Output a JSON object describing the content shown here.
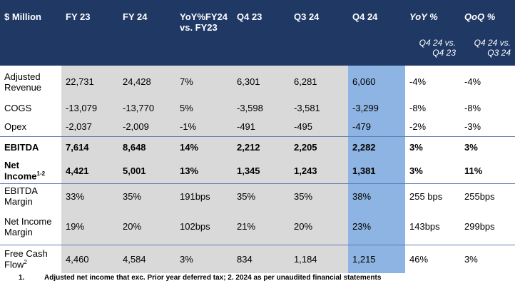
{
  "table": {
    "header": [
      {
        "title": "$ Million"
      },
      {
        "title": "FY 23"
      },
      {
        "title": "FY 24"
      },
      {
        "title": "YoY%FY24 vs. FY23"
      },
      {
        "title": "Q4 23"
      },
      {
        "title": "Q3 24"
      },
      {
        "title": "Q4 24"
      },
      {
        "title": "YoY %",
        "note": "Q4 24 vs. Q4 23"
      },
      {
        "title": "QoQ %",
        "note": "Q4 24 vs. Q3 24"
      }
    ],
    "rows": [
      {
        "label": "Adjusted Revenue",
        "cells": [
          "22,731",
          "24,428",
          "7%",
          "6,301",
          "6,281",
          "6,060",
          "-4%",
          "-4%"
        ]
      },
      {
        "label": "COGS",
        "cells": [
          "-13,079",
          "-13,770",
          "5%",
          "-3,598",
          "-3,581",
          "-3,299",
          "-8%",
          "-8%"
        ]
      },
      {
        "label": "Opex",
        "cells": [
          "-2,037",
          "-2,009",
          "-1%",
          "-491",
          "-495",
          "-479",
          "-2%",
          "-3%"
        ]
      },
      {
        "label": "EBITDA",
        "cells": [
          "7,614",
          "8,648",
          "14%",
          "2,212",
          "2,205",
          "2,282",
          "3%",
          "3%"
        ]
      },
      {
        "label": "Net Income",
        "sup": "1-2",
        "cells": [
          "4,421",
          "5,001",
          "13%",
          "1,345",
          "1,243",
          "1,381",
          "3%",
          "11%"
        ]
      },
      {
        "label": "EBITDA Margin",
        "cells": [
          "33%",
          "35%",
          "191bps",
          "35%",
          "35%",
          "38%",
          "255 bps",
          "255bps"
        ]
      },
      {
        "label": "Net Income Margin",
        "cells": [
          "19%",
          "20%",
          "102bps",
          "21%",
          "20%",
          "23%",
          "143bps",
          "299bps"
        ]
      },
      {
        "label": "Free Cash Flow",
        "sup": "2",
        "cells": [
          "4,460",
          "4,584",
          "3%",
          "834",
          "1,184",
          "1,215",
          "46%",
          "3%"
        ]
      }
    ],
    "footnote": {
      "number": "1.",
      "text": "Adjusted net income that exc. Prior year deferred tax; 2. 2024 as per unaudited financial statements"
    }
  }
}
